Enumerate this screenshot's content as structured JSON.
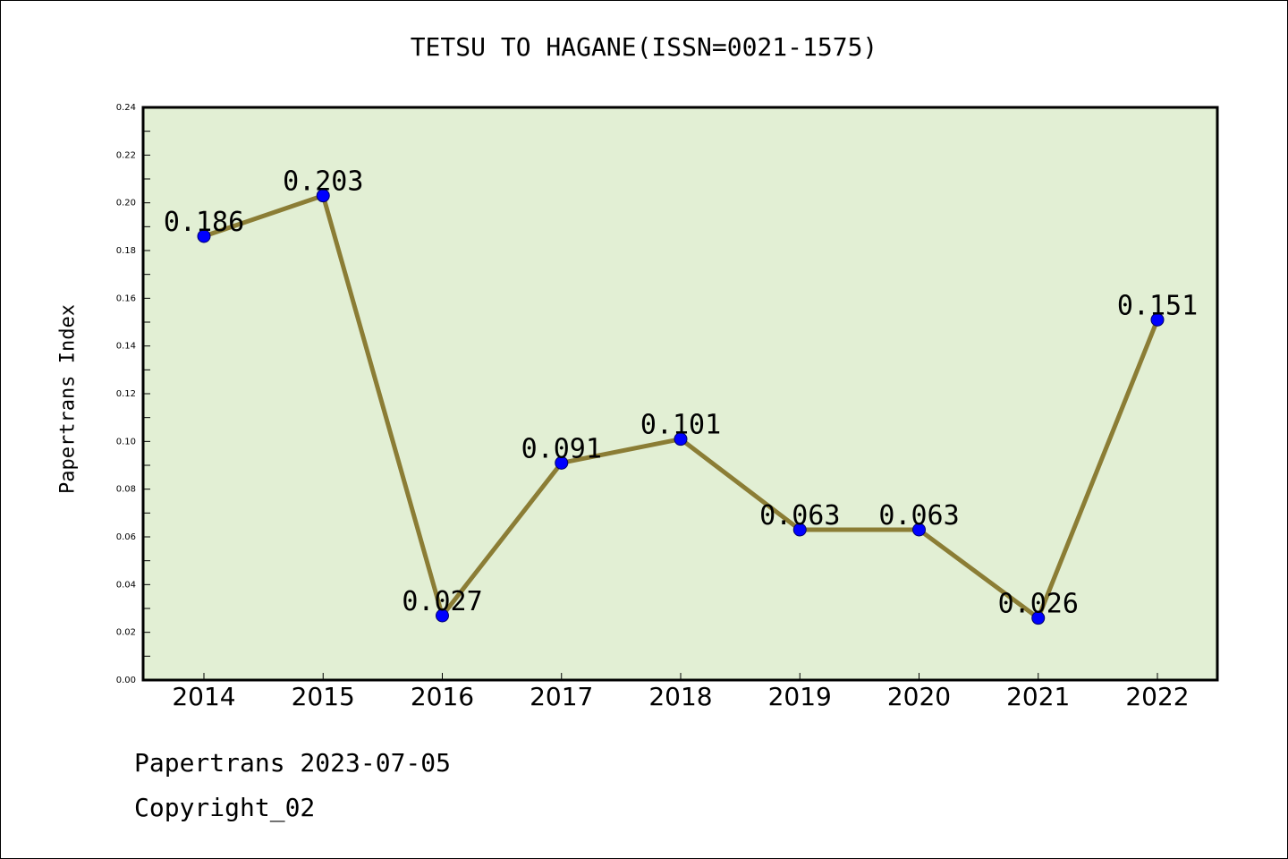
{
  "chart_data": {
    "type": "line",
    "title": "TETSU TO HAGANE(ISSN=0021-1575)",
    "xlabel": "",
    "ylabel": "Papertrans Index",
    "categories": [
      "2014",
      "2015",
      "2016",
      "2017",
      "2018",
      "2019",
      "2020",
      "2021",
      "2022"
    ],
    "values": [
      0.186,
      0.203,
      0.027,
      0.091,
      0.101,
      0.063,
      0.063,
      0.026,
      0.151
    ],
    "data_labels": [
      "0.186",
      "0.203",
      "0.027",
      "0.091",
      "0.101",
      "0.063",
      "0.063",
      "0.026",
      "0.151"
    ],
    "ylim": [
      0,
      0.24
    ],
    "yticks": [
      "0.00",
      "0.02",
      "0.04",
      "0.06",
      "0.08",
      "0.10",
      "0.12",
      "0.14",
      "0.16",
      "0.18",
      "0.20",
      "0.22",
      "0.24"
    ],
    "grid": false,
    "colors": {
      "plot_background": "#e2efd4",
      "line": "#8b7d35",
      "marker": "#0000ff"
    }
  },
  "footer": {
    "line1": "Papertrans 2023-07-05",
    "line2": "Copyright_02"
  }
}
